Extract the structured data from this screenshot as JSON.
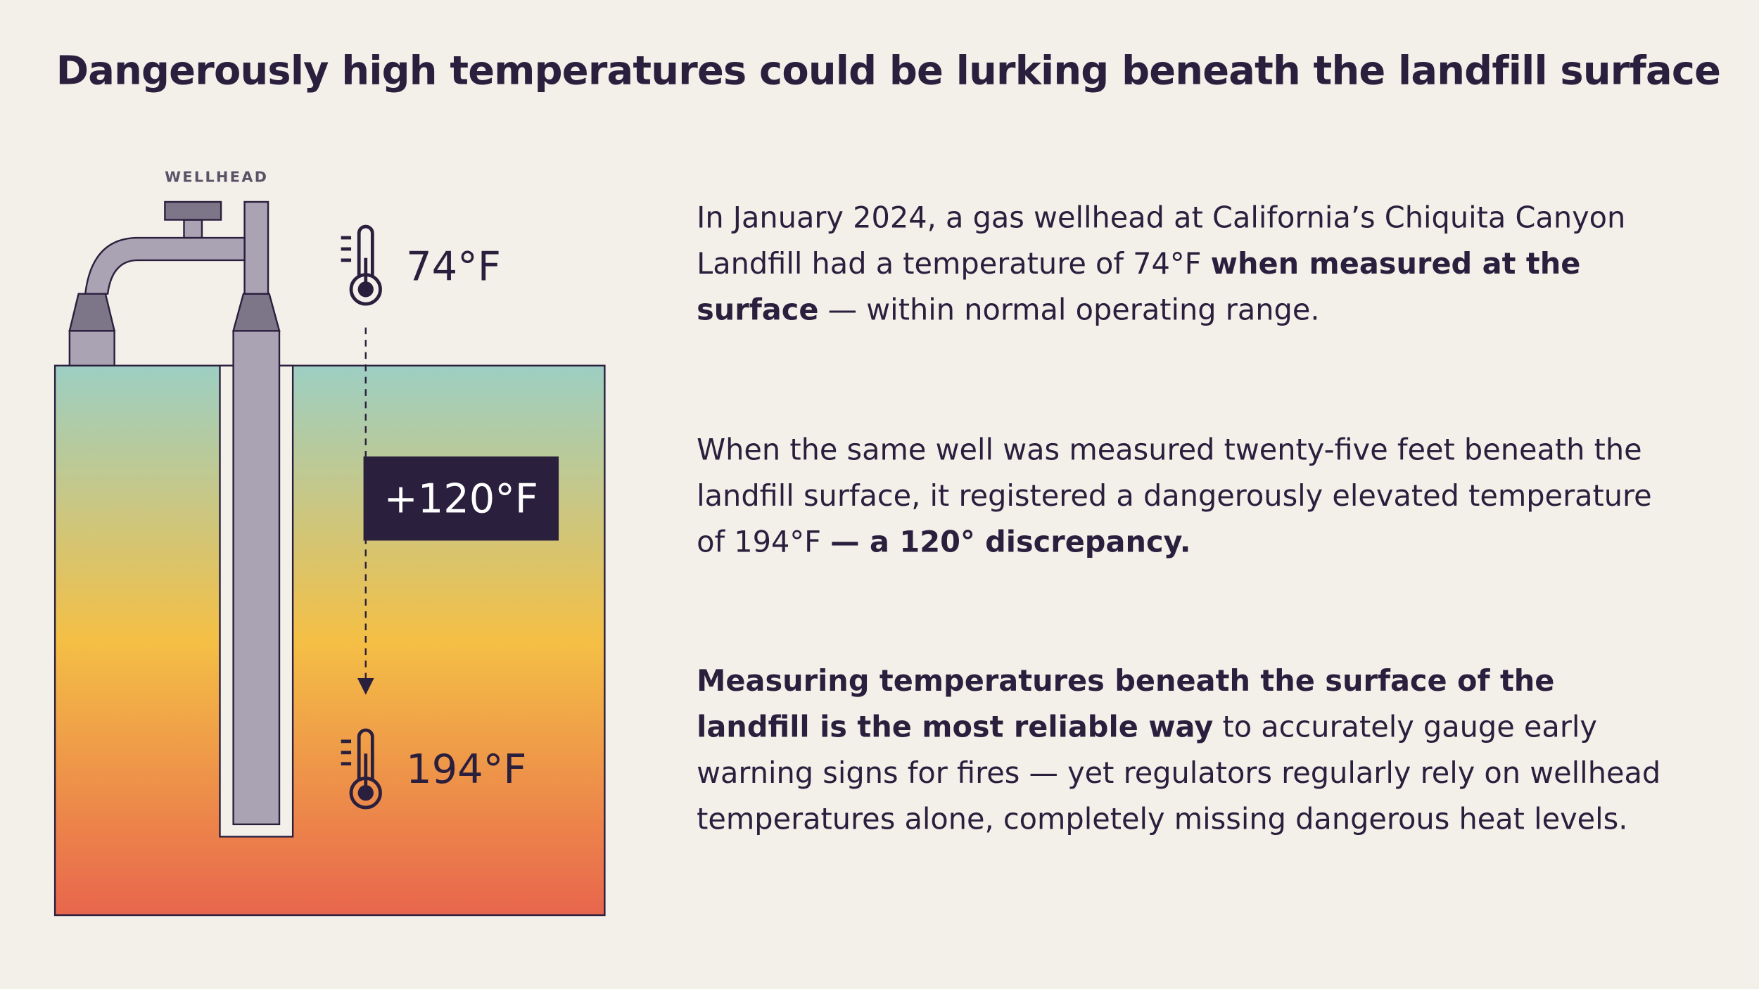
{
  "title": "Dangerously high temperatures could be lurking beneath the landfill surface",
  "diagram": {
    "wellhead_label": "WELLHEAD",
    "surface_temp": "74°F",
    "difference": "+120°F",
    "depth_temp": "194°F"
  },
  "paragraphs": [
    [
      {
        "text": "In January 2024, a gas wellhead at California’s Chiquita Canyon Landfill had a temperature of 74°F ",
        "bold": false
      },
      {
        "text": "when measured at the surface",
        "bold": true
      },
      {
        "text": " — within normal operating range.",
        "bold": false
      }
    ],
    [
      {
        "text": "When the same well was measured twenty-five feet beneath the landfill surface, it registered a dangerously elevated temperature of 194°F ",
        "bold": false
      },
      {
        "text": "— a 120° discrepancy.",
        "bold": true
      }
    ],
    [
      {
        "text": "Measuring temperatures beneath the surface of the landfill is the most reliable way",
        "bold": true
      },
      {
        "text": " to accurately gauge early warning signs for fires — yet regulators regularly rely on wellhead temperatures alone, completely missing dangerous heat levels.",
        "bold": false
      }
    ]
  ]
}
